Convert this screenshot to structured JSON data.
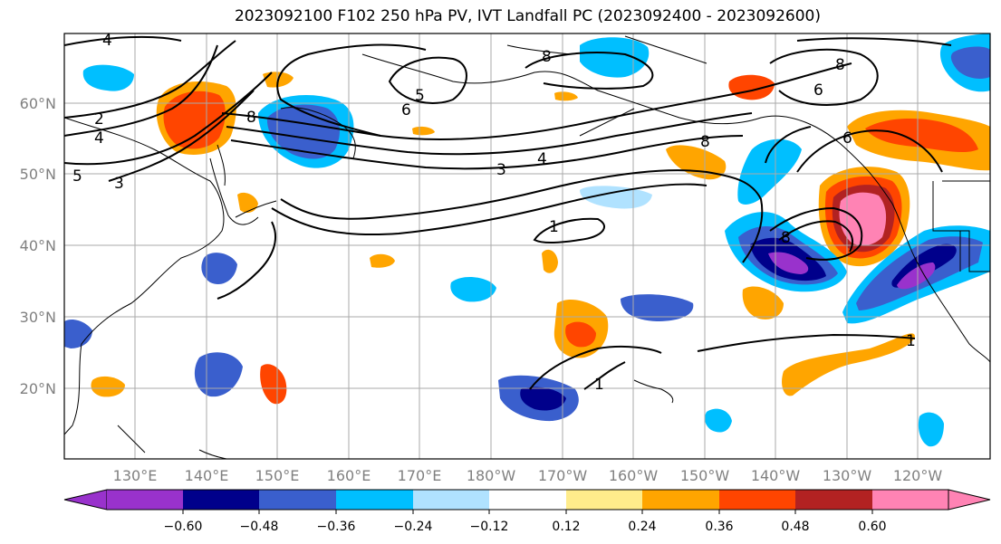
{
  "title": "2023092100 F102 250 hPa PV, IVT Landfall PC (2023092400 - 2023092600)",
  "lat_labels": [
    "60°N",
    "50°N",
    "40°N",
    "30°N",
    "20°N"
  ],
  "lon_labels": [
    "130°E",
    "140°E",
    "150°E",
    "160°E",
    "170°E",
    "180°W",
    "170°W",
    "160°W",
    "150°W",
    "140°W",
    "130°W",
    "120°W"
  ],
  "colorbar": {
    "colors": [
      "#9932cc",
      "#00008b",
      "#3a5fcd",
      "#00bfff",
      "#b0e2ff",
      "#ffffff",
      "#ffec8b",
      "#ffa500",
      "#ff4500",
      "#b22222",
      "#ff83b4"
    ],
    "tick_labels": [
      "−0.60",
      "−0.48",
      "−0.36",
      "−0.24",
      "−0.12",
      "0.12",
      "0.24",
      "0.36",
      "0.48",
      "0.60"
    ]
  },
  "contour_labels": [
    "4",
    "2",
    "4",
    "5",
    "3",
    "8",
    "5",
    "6",
    "6",
    "8",
    "8",
    "3",
    "4",
    "1",
    "8",
    "1",
    "1",
    "6",
    "8"
  ]
}
